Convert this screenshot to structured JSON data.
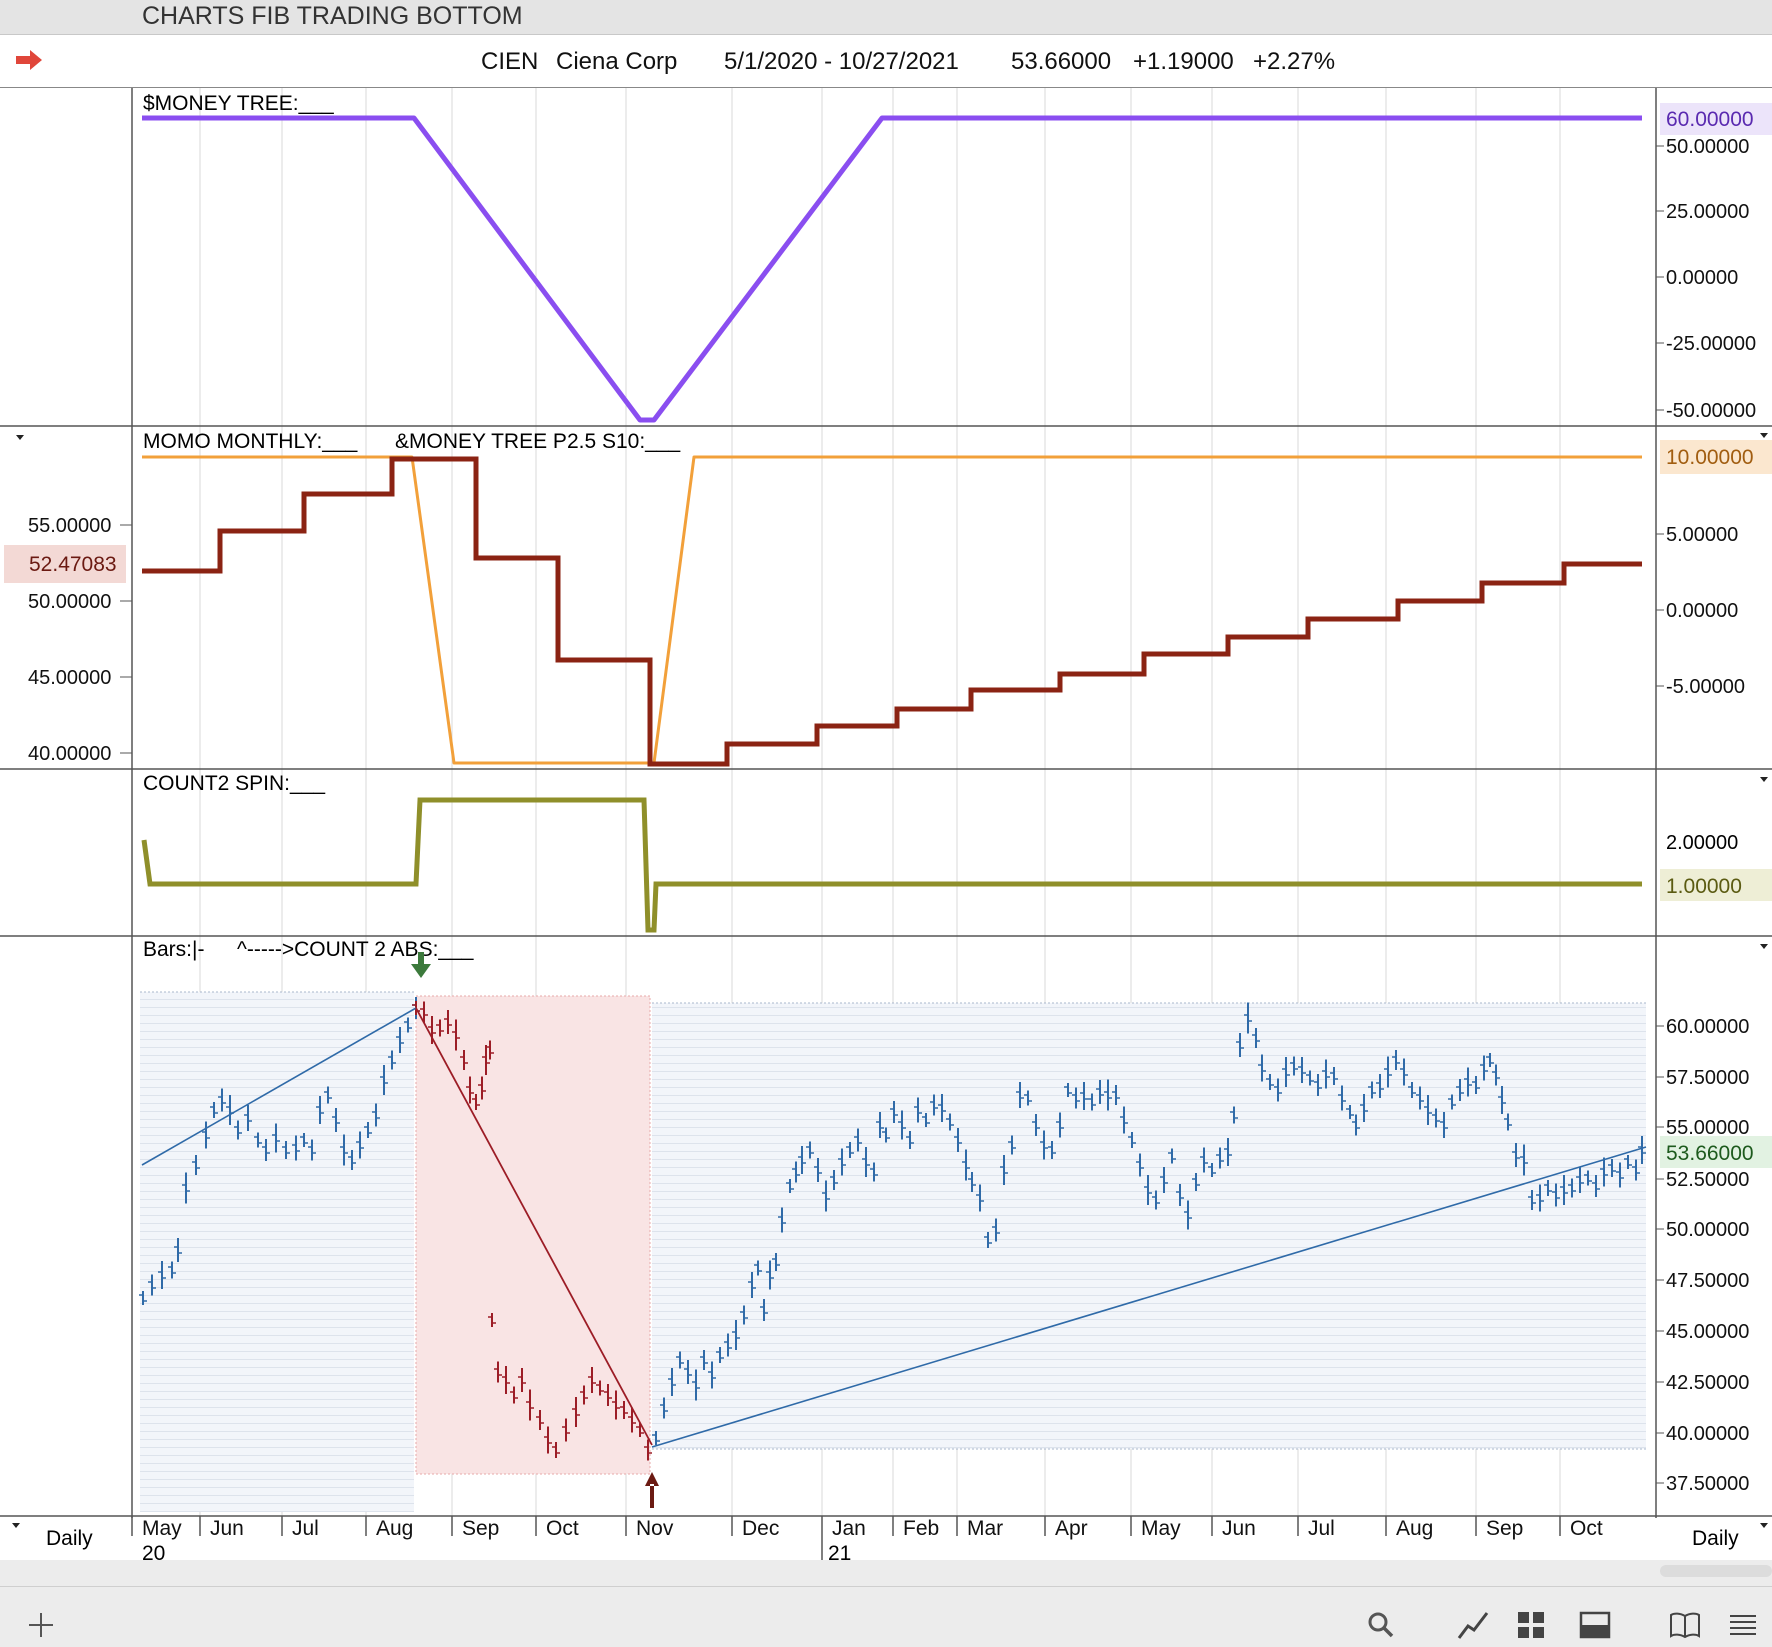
{
  "window": {
    "title": "CHARTS FIB TRADING BOTTOM"
  },
  "header": {
    "symbol": "CIEN",
    "company": "Ciena Corp",
    "date_range": "5/1/2020 - 10/27/2021",
    "last": "53.66000",
    "change": "+1.19000",
    "change_pct": "+2.27%"
  },
  "panels": {
    "money_tree": {
      "label": "$MONEY TREE:___",
      "right_axis": [
        "50.00000",
        "25.00000",
        "0.00000",
        "-25.00000",
        "-50.00000"
      ],
      "current_value": "60.00000",
      "color": "#8a4ef0"
    },
    "momo": {
      "label1": "MOMO MONTHLY:___",
      "label2": "&MONEY TREE P2.5 S10:___",
      "left_axis": [
        "55.00000",
        "50.00000",
        "45.00000",
        "40.00000"
      ],
      "left_current": "52.47083",
      "right_axis": [
        "5.00000",
        "0.00000",
        "-5.00000"
      ],
      "right_current": "10.00000",
      "momo_color": "#8b2313",
      "tree_color": "#f2a03a"
    },
    "count2_spin": {
      "label": "COUNT2 SPIN:___",
      "right_axis": [
        "2.00000"
      ],
      "current_value": "1.00000",
      "color": "#8f8f2a"
    },
    "bars": {
      "label1": "Bars:|-",
      "label2": "^----->COUNT 2 ABS:___",
      "right_axis": [
        "60.00000",
        "57.50000",
        "55.00000",
        "52.50000",
        "50.00000",
        "47.50000",
        "45.00000",
        "42.50000",
        "40.00000",
        "37.50000"
      ],
      "current_value": "53.66000",
      "up_color": "#2f6aa8",
      "down_color": "#9c1d26"
    }
  },
  "time_axis": {
    "months": [
      "May",
      "Jun",
      "Jul",
      "Aug",
      "Sep",
      "Oct",
      "Nov",
      "Dec",
      "Jan",
      "Feb",
      "Mar",
      "Apr",
      "May",
      "Jun",
      "Jul",
      "Aug",
      "Sep",
      "Oct"
    ],
    "years": [
      "20",
      "21"
    ],
    "period_left": "Daily",
    "period_right": "Daily"
  },
  "toolbar": {
    "icons": [
      "add-icon",
      "search-icon",
      "draw-line-icon",
      "grid-layout-icon",
      "panel-icon",
      "book-icon",
      "menu-icon"
    ]
  }
}
